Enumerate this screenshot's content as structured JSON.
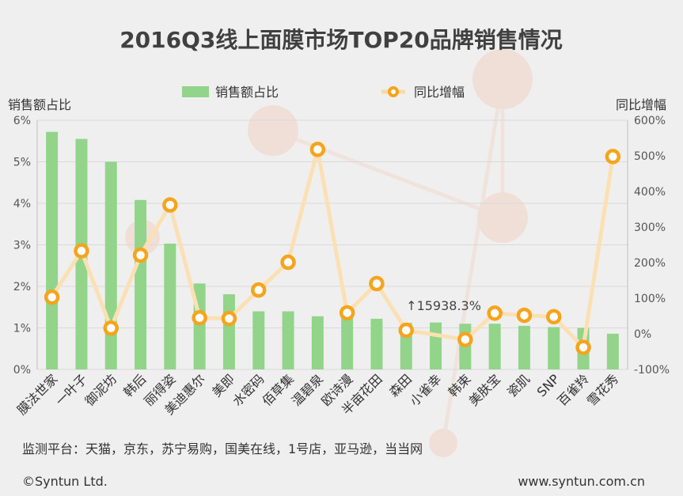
{
  "chart_data": {
    "type": "bar+line",
    "title": "2016Q3线上面膜市场TOP20品牌销售情况",
    "ylabel_left": "销售额占比",
    "ylabel_right": "同比增幅",
    "ylim_left": [
      0,
      6
    ],
    "ylim_right": [
      -100,
      600
    ],
    "left_ticks": [
      "0%",
      "1%",
      "2%",
      "3%",
      "4%",
      "5%",
      "6%"
    ],
    "right_ticks": [
      "-100%",
      "0%",
      "100%",
      "200%",
      "300%",
      "400%",
      "500%",
      "600%"
    ],
    "categories": [
      "膜法世家",
      "一叶子",
      "御泥坊",
      "韩后",
      "丽得姿",
      "美迪惠尔",
      "美即",
      "水密码",
      "佰草集",
      "温碧泉",
      "欧诗漫",
      "半亩花田",
      "森田",
      "小雀幸",
      "韩束",
      "美肤宝",
      "瓷肌",
      "SNP",
      "百雀羚",
      "雪花秀"
    ],
    "series": [
      {
        "name": "销售额占比",
        "type": "bar",
        "color": "#92d58a",
        "values": [
          5.72,
          5.55,
          5.0,
          4.08,
          3.03,
          2.07,
          1.81,
          1.4,
          1.4,
          1.28,
          1.27,
          1.22,
          1.12,
          1.13,
          1.1,
          1.1,
          1.05,
          1.02,
          1.0,
          0.86
        ]
      },
      {
        "name": "同比增幅",
        "type": "line",
        "color": "#f5a41e",
        "values": [
          103,
          233,
          16,
          221,
          362,
          45,
          43,
          123,
          201,
          518,
          59,
          141,
          10,
          null,
          -16,
          58,
          52,
          48,
          -38,
          498
        ]
      }
    ],
    "annotation": {
      "text": "↑15938.3%",
      "category": "小雀幸"
    }
  },
  "footer": {
    "platforms": "监测平台：天猫，京东，苏宁易购，国美在线，1号店，亚马逊，当当网",
    "copyright": "©Syntun Ltd.",
    "website": "www.syntun.com.cn"
  }
}
